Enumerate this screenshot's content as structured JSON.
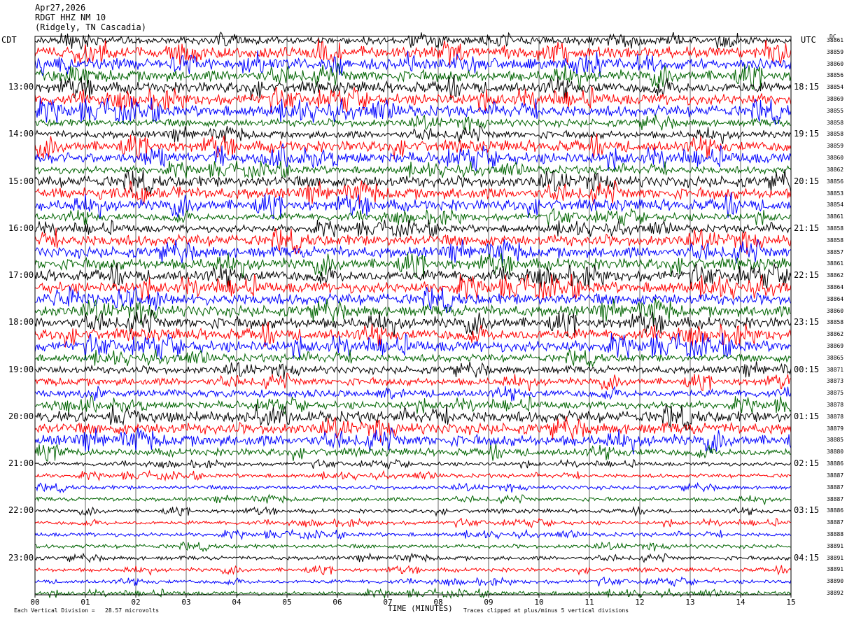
{
  "header": {
    "date": "Apr27,2026",
    "station": "RDGT HHZ NM 10",
    "location": "(Ridgely, TN Cascadia)"
  },
  "axis_labels": {
    "left_timezone": "CDT",
    "right_timezone": "UTC",
    "dc_label": "DC",
    "xlabel": "TIME (MINUTES)"
  },
  "footer": {
    "scale_note": "Each Vertical Division =   28.57 microvolts",
    "clip_note": "Traces clipped at plus/minus 5 vertical divisions"
  },
  "colors": {
    "trace_cycle": [
      "#000000",
      "#ff0000",
      "#0000ff",
      "#006400"
    ],
    "background": "#ffffff",
    "grid": "#000000"
  },
  "chart_data": {
    "type": "line",
    "title": "",
    "xlabel": "TIME (MINUTES)",
    "ylabel": "",
    "xlim": [
      0,
      15
    ],
    "x_ticks": [
      "00",
      "01",
      "02",
      "03",
      "04",
      "05",
      "06",
      "07",
      "08",
      "09",
      "10",
      "11",
      "12",
      "13",
      "14",
      "15"
    ],
    "grid": true,
    "trace_count": 48,
    "left_time_labels": [
      {
        "label": "13:00",
        "row": 4
      },
      {
        "label": "14:00",
        "row": 8
      },
      {
        "label": "15:00",
        "row": 12
      },
      {
        "label": "16:00",
        "row": 16
      },
      {
        "label": "17:00",
        "row": 20
      },
      {
        "label": "18:00",
        "row": 24
      },
      {
        "label": "19:00",
        "row": 28
      },
      {
        "label": "20:00",
        "row": 32
      },
      {
        "label": "21:00",
        "row": 36
      },
      {
        "label": "22:00",
        "row": 40
      },
      {
        "label": "23:00",
        "row": 44
      }
    ],
    "right_time_labels": [
      {
        "label": "18:15",
        "row": 4
      },
      {
        "label": "19:15",
        "row": 8
      },
      {
        "label": "20:15",
        "row": 12
      },
      {
        "label": "21:15",
        "row": 16
      },
      {
        "label": "22:15",
        "row": 20
      },
      {
        "label": "23:15",
        "row": 24
      },
      {
        "label": "00:15",
        "row": 28
      },
      {
        "label": "01:15",
        "row": 32
      },
      {
        "label": "02:15",
        "row": 36
      },
      {
        "label": "03:15",
        "row": 40
      },
      {
        "label": "04:15",
        "row": 44
      }
    ],
    "dc_offsets": [
      "38861",
      "38859",
      "38860",
      "38856",
      "38854",
      "38869",
      "38855",
      "38858",
      "38858",
      "38859",
      "38860",
      "38862",
      "38856",
      "38853",
      "38854",
      "38861",
      "38858",
      "38858",
      "38857",
      "38861",
      "38862",
      "38864",
      "38864",
      "38860",
      "38858",
      "38862",
      "38869",
      "38865",
      "38871",
      "38873",
      "38875",
      "38878",
      "38878",
      "38879",
      "38885",
      "38880",
      "38886",
      "38887",
      "38887",
      "38887",
      "38886",
      "38887",
      "38888",
      "38891",
      "38891",
      "38891",
      "38890",
      "38892"
    ],
    "trace_amplitude_level": [
      2,
      3,
      3,
      3,
      3,
      3,
      3,
      2,
      2,
      3,
      3,
      2,
      3,
      3,
      3,
      2,
      2,
      3,
      3,
      3,
      3,
      3,
      3,
      3,
      3,
      3,
      3,
      2,
      2,
      2,
      2,
      2,
      3,
      3,
      3,
      2,
      1,
      1,
      1,
      1,
      1,
      1,
      1,
      1,
      1,
      1,
      1,
      1
    ]
  }
}
